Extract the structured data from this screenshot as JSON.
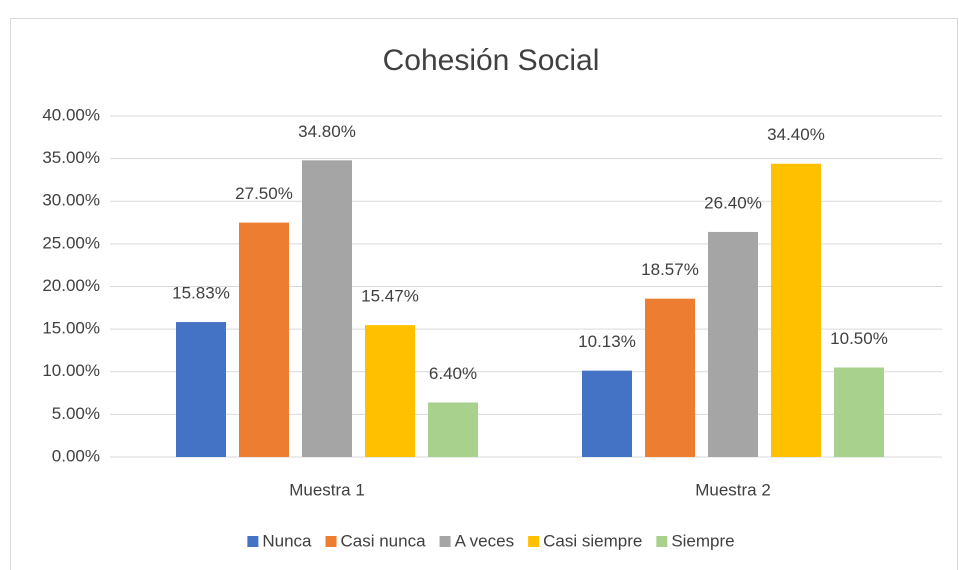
{
  "chart_data": {
    "type": "bar",
    "title": "Cohesión Social",
    "categories": [
      "Muestra 1",
      "Muestra 2"
    ],
    "series": [
      {
        "name": "Nunca",
        "color": "#4472c4",
        "values": [
          15.83,
          10.13
        ],
        "value_labels": [
          "15.83%",
          "10.13%"
        ]
      },
      {
        "name": "Casi nunca",
        "color": "#ed7d31",
        "values": [
          27.5,
          18.57
        ],
        "value_labels": [
          "27.50%",
          "18.57%"
        ]
      },
      {
        "name": "A veces",
        "color": "#a5a5a5",
        "values": [
          34.8,
          26.4
        ],
        "value_labels": [
          "34.80%",
          "26.40%"
        ]
      },
      {
        "name": "Casi siempre",
        "color": "#ffc000",
        "values": [
          15.47,
          34.4
        ],
        "value_labels": [
          "15.47%",
          "34.40%"
        ]
      },
      {
        "name": "Siempre",
        "color": "#a9d18e",
        "values": [
          6.4,
          10.5
        ],
        "value_labels": [
          "6.40%",
          "10.50%"
        ]
      }
    ],
    "ylim": [
      0,
      40
    ],
    "yticks": [
      {
        "value": 0,
        "label": "0.00%"
      },
      {
        "value": 5,
        "label": "5.00%"
      },
      {
        "value": 10,
        "label": "10.00%"
      },
      {
        "value": 15,
        "label": "15.00%"
      },
      {
        "value": 20,
        "label": "20.00%"
      },
      {
        "value": 25,
        "label": "25.00%"
      },
      {
        "value": 30,
        "label": "30.00%"
      },
      {
        "value": 35,
        "label": "35.00%"
      },
      {
        "value": 40,
        "label": "40.00%"
      }
    ],
    "grid": true,
    "legend": "bottom"
  }
}
